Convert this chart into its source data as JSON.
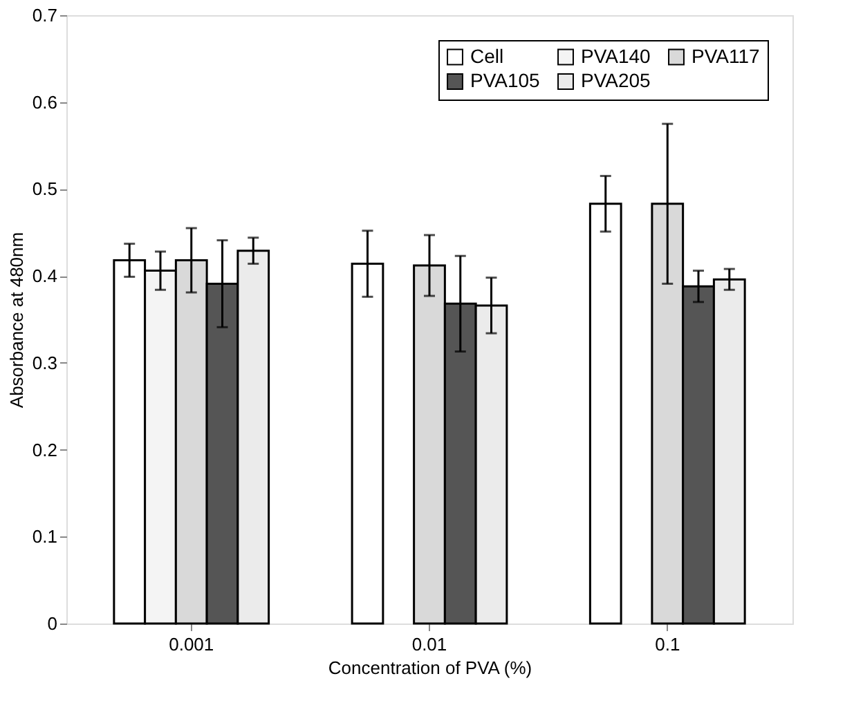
{
  "chart_data": {
    "type": "bar",
    "xlabel": "Concentration of PVA (%)",
    "ylabel": "Absorbance at 480nm",
    "categories": [
      "0.001",
      "0.01",
      "0.1"
    ],
    "series": [
      {
        "name": "Cell",
        "color": "#ffffff",
        "values": [
          0.418,
          0.414,
          0.483
        ],
        "errors": [
          0.019,
          0.038,
          0.032
        ]
      },
      {
        "name": "PVA140",
        "color": "#f4f4f4",
        "values": [
          0.406,
          null,
          null
        ],
        "errors": [
          0.022,
          null,
          null
        ]
      },
      {
        "name": "PVA117",
        "color": "#d9d9d9",
        "values": [
          0.418,
          0.412,
          0.483
        ],
        "errors": [
          0.037,
          0.035,
          0.092
        ]
      },
      {
        "name": "PVA105",
        "color": "#555555",
        "values": [
          0.391,
          0.368,
          0.388
        ],
        "errors": [
          0.05,
          0.055,
          0.018
        ]
      },
      {
        "name": "PVA205",
        "color": "#ebebeb",
        "values": [
          0.429,
          0.366,
          0.396
        ],
        "errors": [
          0.015,
          0.032,
          0.012
        ]
      }
    ],
    "ylim": [
      0,
      0.7
    ],
    "yticks": [
      0,
      0.1,
      0.2,
      0.3,
      0.4,
      0.5,
      0.6,
      0.7
    ],
    "grid": false,
    "legend": "top right"
  }
}
